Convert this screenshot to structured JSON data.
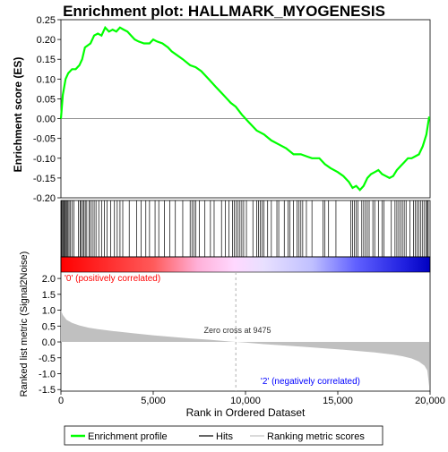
{
  "chart_data": {
    "type": "line",
    "title": "Enrichment plot: HALLMARK_MYOGENESIS",
    "es_panel": {
      "ylabel": "Enrichment score (ES)",
      "ylim": [
        -0.2,
        0.25
      ],
      "yticks": [
        "0.25",
        "0.20",
        "0.15",
        "0.10",
        "0.05",
        "0.00",
        "-0.05",
        "-0.10",
        "-0.15",
        "-0.20"
      ],
      "ytick_values": [
        0.25,
        0.2,
        0.15,
        0.1,
        0.05,
        0.0,
        -0.05,
        -0.1,
        -0.15,
        -0.2
      ],
      "grid": false,
      "series": {
        "name": "Enrichment profile",
        "color": "#00ff00",
        "x": [
          0,
          100,
          250,
          400,
          600,
          800,
          1000,
          1150,
          1300,
          1450,
          1600,
          1800,
          2000,
          2200,
          2400,
          2600,
          2800,
          3000,
          3200,
          3400,
          3600,
          3800,
          4000,
          4200,
          4500,
          4800,
          5000,
          5200,
          5500,
          5800,
          6000,
          6300,
          6600,
          7000,
          7300,
          7600,
          8000,
          8400,
          8800,
          9200,
          9475,
          9800,
          10200,
          10600,
          11000,
          11400,
          11800,
          12200,
          12600,
          13000,
          13300,
          13600,
          14000,
          14300,
          14600,
          15000,
          15300,
          15600,
          15800,
          16000,
          16200,
          16400,
          16600,
          16800,
          17000,
          17200,
          17400,
          17600,
          17800,
          18000,
          18200,
          18400,
          18600,
          18800,
          19000,
          19200,
          19400,
          19600,
          19800,
          19950
        ],
        "y": [
          0.0,
          0.06,
          0.1,
          0.115,
          0.125,
          0.125,
          0.135,
          0.15,
          0.18,
          0.185,
          0.19,
          0.21,
          0.215,
          0.21,
          0.23,
          0.22,
          0.225,
          0.22,
          0.23,
          0.225,
          0.22,
          0.21,
          0.2,
          0.195,
          0.19,
          0.19,
          0.2,
          0.195,
          0.19,
          0.18,
          0.17,
          0.16,
          0.15,
          0.135,
          0.13,
          0.12,
          0.1,
          0.08,
          0.06,
          0.04,
          0.03,
          0.01,
          -0.01,
          -0.03,
          -0.04,
          -0.055,
          -0.065,
          -0.075,
          -0.09,
          -0.09,
          -0.095,
          -0.1,
          -0.1,
          -0.115,
          -0.125,
          -0.135,
          -0.145,
          -0.16,
          -0.175,
          -0.17,
          -0.18,
          -0.17,
          -0.15,
          -0.14,
          -0.135,
          -0.13,
          -0.14,
          -0.145,
          -0.15,
          -0.145,
          -0.13,
          -0.12,
          -0.11,
          -0.1,
          -0.1,
          -0.095,
          -0.09,
          -0.07,
          -0.04,
          0.005
        ]
      }
    },
    "hits_panel": {
      "series_name": "Hits",
      "hit_positions": [
        40,
        90,
        140,
        180,
        230,
        280,
        330,
        380,
        440,
        520,
        600,
        700,
        950,
        1050,
        1100,
        1180,
        1250,
        1320,
        1400,
        1520,
        1600,
        1700,
        1800,
        1900,
        2050,
        2200,
        2350,
        2500,
        2700,
        2900,
        3050,
        3200,
        3350,
        3700,
        4100,
        4350,
        4600,
        4800,
        5100,
        5300,
        5600,
        5900,
        6200,
        6600,
        7000,
        7100,
        7200,
        7300,
        7500,
        7800,
        8100,
        8300,
        8700,
        8900,
        9100,
        9300,
        9400,
        9500,
        9600,
        9700,
        9800,
        9900,
        10050,
        10400,
        10600,
        10700,
        10800,
        10900,
        11000,
        11200,
        11400,
        11700,
        11800,
        12100,
        12300,
        12400,
        12600,
        12800,
        12900,
        13000,
        13100,
        13300,
        13600,
        14200,
        14300,
        14500,
        14900,
        15700,
        15800,
        15900,
        16000,
        16100,
        16300,
        16400,
        16500,
        16600,
        16700,
        16900,
        17000,
        17200,
        17400,
        17500,
        17900,
        18100,
        18200,
        18300,
        18400,
        18500,
        18600,
        18700,
        18900,
        19100,
        19200,
        19300,
        19400,
        19500,
        19600,
        19700,
        19800,
        19850,
        19900
      ]
    },
    "ranking_panel": {
      "ylabel": "Ranked list metric (Signal2Noise)",
      "ylim": [
        -1.55,
        2.2
      ],
      "yticks": [
        "2.0",
        "1.5",
        "1.0",
        "0.5",
        "0.0",
        "-0.5",
        "-1.0",
        "-1.5"
      ],
      "ytick_values": [
        2.0,
        1.5,
        1.0,
        0.5,
        0.0,
        -0.5,
        -1.0,
        -1.5
      ],
      "series_name": "Ranking metric scores",
      "x": [
        0,
        100,
        300,
        600,
        1000,
        1500,
        2000,
        3000,
        4000,
        5000,
        6000,
        7000,
        8000,
        9000,
        9475,
        10000,
        11000,
        12000,
        13000,
        14000,
        15000,
        16000,
        17000,
        18000,
        18500,
        19000,
        19400,
        19700,
        19850,
        19950
      ],
      "y": [
        1.0,
        0.85,
        0.7,
        0.6,
        0.52,
        0.45,
        0.4,
        0.33,
        0.27,
        0.21,
        0.16,
        0.11,
        0.07,
        0.02,
        0.0,
        -0.02,
        -0.07,
        -0.11,
        -0.15,
        -0.19,
        -0.23,
        -0.28,
        -0.33,
        -0.4,
        -0.45,
        -0.52,
        -0.62,
        -0.75,
        -0.9,
        -1.4
      ],
      "zero_cross_label": "Zero cross at 9475",
      "zero_cross": 9475,
      "pos_label": "'0' (positively correlated)",
      "neg_label": "'2' (negatively correlated)"
    },
    "xaxis": {
      "xlabel": "Rank in Ordered Dataset",
      "xlim": [
        0,
        20000
      ],
      "xticks": [
        "0",
        "5,000",
        "10,000",
        "15,000",
        "20,000"
      ],
      "xtick_values": [
        0,
        5000,
        10000,
        15000,
        20000
      ]
    },
    "legend": {
      "placement": "bottom",
      "entries": [
        {
          "label": "Enrichment profile",
          "color": "#00ff00"
        },
        {
          "label": "Hits",
          "color": "#000000"
        },
        {
          "label": "Ranking metric scores",
          "color": "#c0c0c0"
        }
      ]
    },
    "colors": {
      "pos_label": "#ff0000",
      "neg_label": "#0000ff",
      "metric_fill": "#c0c0c0"
    }
  }
}
